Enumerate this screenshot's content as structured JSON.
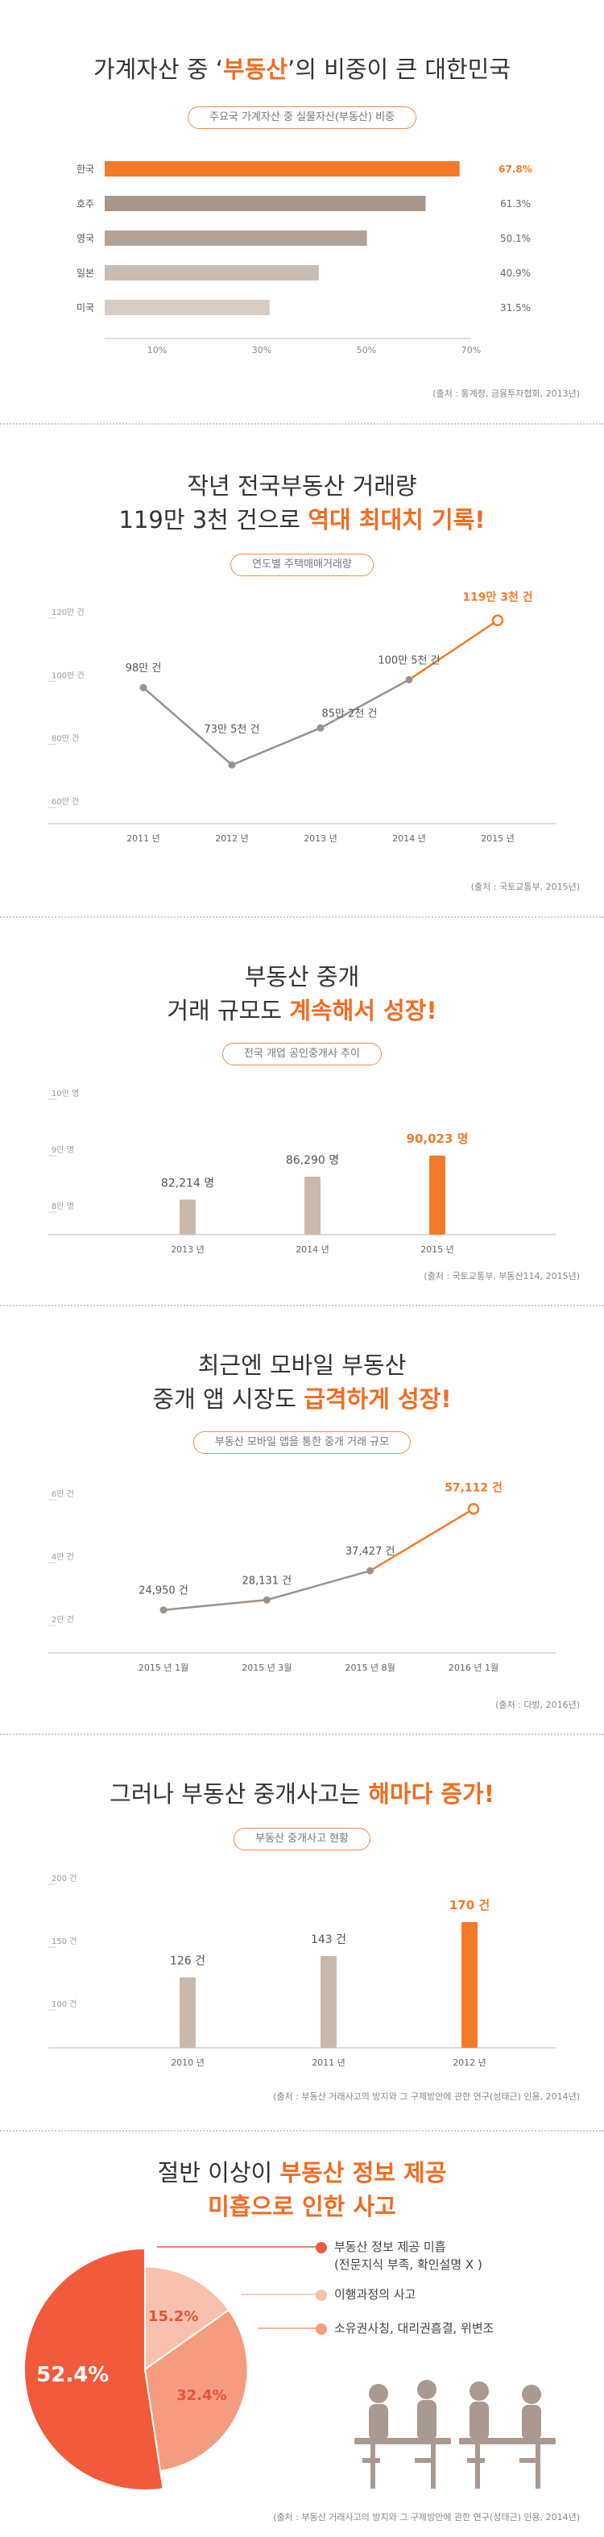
{
  "s1": {
    "title_pre": "가계자산 중 ‘",
    "title_hl": "부동산",
    "title_post": "’의 비중이 큰 대한민국",
    "pill": "주요국 가계자산 중 실물자산(부동산) 비중",
    "source": "(출처 : 통계청, 금융투자협회, 2013년)"
  },
  "s2": {
    "title_line1": "작년 전국부동산 거래량",
    "title_line2_pre": "119만 3천 건으로 ",
    "title_line2_hl": "역대 최대치 기록!",
    "pill": "연도별 주택매매거래량",
    "source": "(출처 : 국토교통부, 2015년)"
  },
  "s3": {
    "title_line1": "부동산 중개",
    "title_line2_pre": "거래 규모도 ",
    "title_line2_hl": "계속해서 성장!",
    "pill": "전국 개업 공인중개사 추이",
    "source": "(출처 : 국토교통부, 부동산114, 2015년)"
  },
  "s4": {
    "title_line1": "최근엔 모바일 부동산",
    "title_line2_pre": "중개 앱 시장도 ",
    "title_line2_hl": "급격하게 성장!",
    "pill": "부동산 모바일 앱을 통한 중개 거래 규모",
    "source": "(출처 : 다방, 2016년)"
  },
  "s5": {
    "title_pre": "그러나 부동산 중개사고는 ",
    "title_hl": "해마다 증가!",
    "pill": "부동산 중개사고 현황",
    "source": "(출처 : 부동산 거래사고의 방지와 그 구제방안에 관한 연구(성태근) 인용, 2014년)"
  },
  "s6": {
    "title_line1_pre": "절반 이상이 ",
    "title_line1_hl": "부동산 정보 제공",
    "title_line2_hl": "미흡으로 인한 사고",
    "legend": [
      {
        "label": "부동산 정보 제공 미흡",
        "sub": "(전문지식 부족, 확인설명 X )",
        "color": "#f25a3c"
      },
      {
        "label": "이행과정의 사고",
        "sub": "",
        "color": "#f8c1ad"
      },
      {
        "label": "소유권사칭, 대리권흠결, 위변조",
        "sub": "",
        "color": "#f59b80"
      }
    ],
    "source": "(출처 : 부동산 거래사고의 방지와 그 구제방안에 관한 연구(성태근) 인용, 2014년)"
  },
  "chart_data": [
    {
      "type": "bar",
      "orientation": "horizontal",
      "categories": [
        "한국",
        "호주",
        "영국",
        "일본",
        "미국"
      ],
      "values": [
        67.8,
        61.3,
        50.1,
        40.9,
        31.5
      ],
      "value_labels": [
        "67.8%",
        "61.3%",
        "50.1%",
        "40.9%",
        "31.5%"
      ],
      "xticks": [
        "10%",
        "30%",
        "50%",
        "70%"
      ],
      "xtick_values": [
        10,
        30,
        50,
        70
      ],
      "xlim": [
        0,
        70
      ],
      "colors": [
        "#f47a2a",
        "#a6968c",
        "#b3a397",
        "#c9bcb2",
        "#d6ccc4"
      ]
    },
    {
      "type": "line",
      "x": [
        "2011 년",
        "2012 년",
        "2013 년",
        "2014 년",
        "2015 년"
      ],
      "values": [
        98,
        73.5,
        85.2,
        100.5,
        119.3
      ],
      "value_labels": [
        "98만 건",
        "73만 5천 건",
        "85만 2천 건",
        "100만 5천 건",
        "119만 3천 건"
      ],
      "yticks": [
        "60만 건",
        "80만 건",
        "100만 건",
        "120만 건"
      ],
      "ytick_values": [
        60,
        80,
        100,
        120
      ],
      "ylim": [
        60,
        120
      ],
      "colors": {
        "line": "#9a928c",
        "highlight": "#f47a2a"
      }
    },
    {
      "type": "bar",
      "categories": [
        "2013 년",
        "2014 년",
        "2015 년"
      ],
      "values": [
        82214,
        86290,
        90023
      ],
      "value_labels": [
        "82,214 명",
        "86,290 명",
        "90,023 명"
      ],
      "yticks": [
        "8만 명",
        "9만 명",
        "10만 명"
      ],
      "ytick_values": [
        80000,
        90000,
        100000
      ],
      "ylim": [
        76000,
        100000
      ],
      "colors": [
        "#c9b9ac",
        "#c9b9ac",
        "#f47a2a"
      ]
    },
    {
      "type": "line",
      "x": [
        "2015 년 1월",
        "2015 년 3월",
        "2015 년 8월",
        "2016 년 1월"
      ],
      "values": [
        24950,
        28131,
        37427,
        57112
      ],
      "value_labels": [
        "24,950 건",
        "28,131 건",
        "37,427 건",
        "57,112 건"
      ],
      "yticks": [
        "2만 건",
        "4만 건",
        "6만 건"
      ],
      "ytick_values": [
        20000,
        40000,
        60000
      ],
      "ylim": [
        10000,
        60000
      ],
      "colors": {
        "line": "#9a928c",
        "highlight": "#f47a2a"
      }
    },
    {
      "type": "bar",
      "categories": [
        "2010 년",
        "2011 년",
        "2012 년"
      ],
      "values": [
        126,
        143,
        170
      ],
      "value_labels": [
        "126 건",
        "143 건",
        "170 건"
      ],
      "yticks": [
        "100 건",
        "150 건",
        "200 건"
      ],
      "ytick_values": [
        100,
        150,
        200
      ],
      "ylim": [
        70,
        200
      ],
      "colors": [
        "#c9b9ac",
        "#c9b9ac",
        "#f47a2a"
      ]
    },
    {
      "type": "pie",
      "values": [
        52.4,
        15.2,
        32.4
      ],
      "value_labels": [
        "52.4%",
        "15.2%",
        "32.4%"
      ],
      "categories": [
        "부동산 정보 제공 미흡",
        "이행과정의 사고",
        "소유권사칭, 대리권흠결, 위변조"
      ],
      "colors": [
        "#f25a3c",
        "#f8c1ad",
        "#f59b80"
      ]
    }
  ]
}
